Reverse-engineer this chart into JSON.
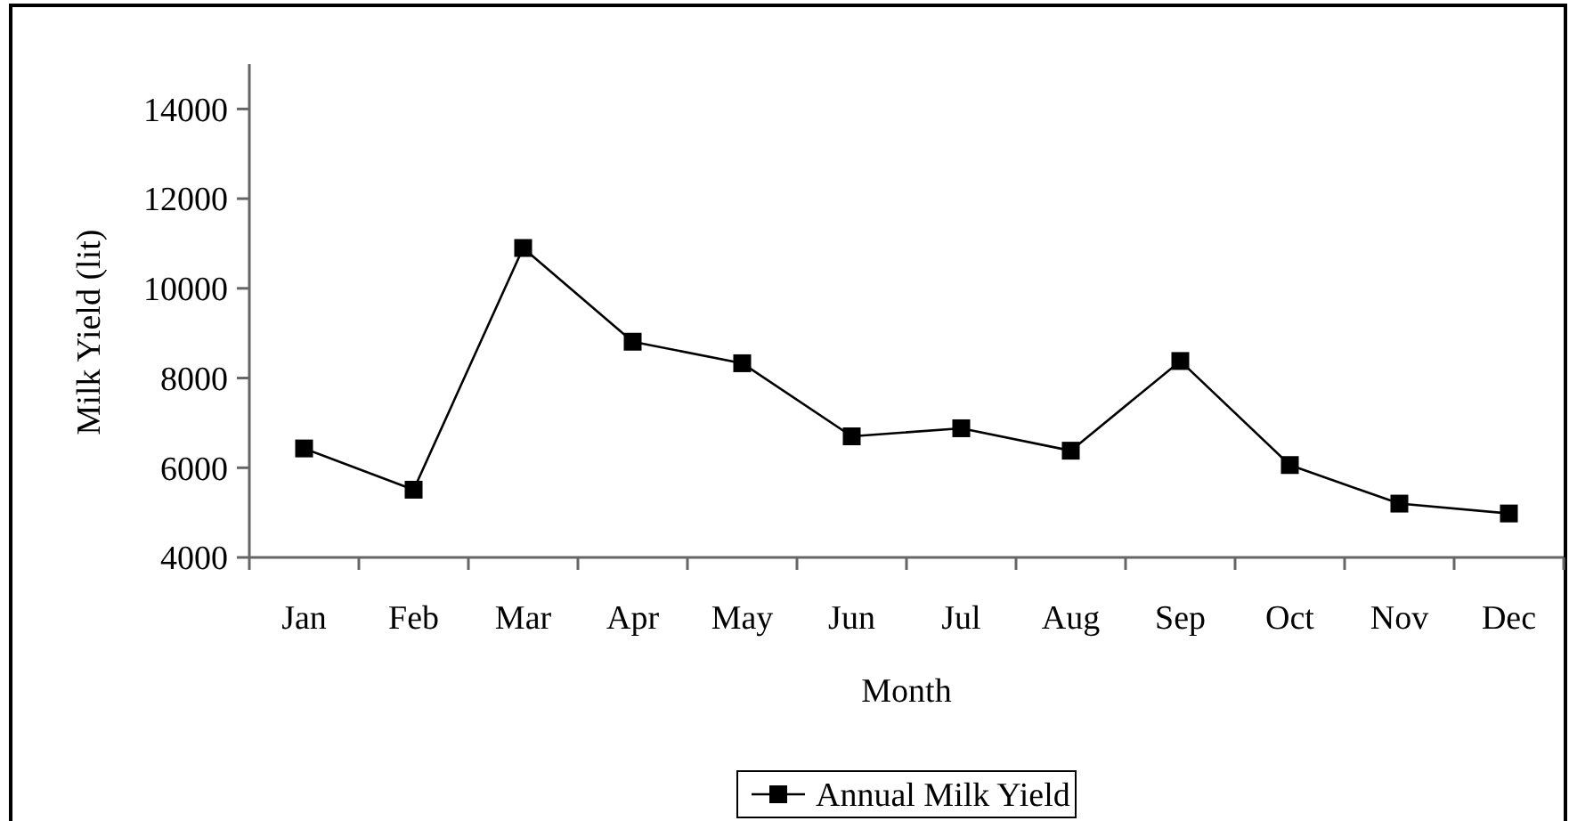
{
  "chart_data": {
    "type": "line",
    "xlabel": "Month",
    "ylabel": "Milk Yield (lit)",
    "categories": [
      "Jan",
      "Feb",
      "Mar",
      "Apr",
      "May",
      "Jun",
      "Jul",
      "Aug",
      "Sep",
      "Oct",
      "Nov",
      "Dec"
    ],
    "series": [
      {
        "name": "Annual Milk Yield",
        "color": "#000000",
        "values": [
          6430,
          5510,
          10900,
          8810,
          8330,
          6700,
          6880,
          6380,
          8380,
          6060,
          5200,
          4980
        ]
      }
    ],
    "ylim": [
      4000,
      15000
    ],
    "yticks": [
      4000,
      6000,
      8000,
      10000,
      12000,
      14000
    ],
    "marker": "square",
    "line_style": "solid",
    "legend": "bottom",
    "grid": false
  }
}
